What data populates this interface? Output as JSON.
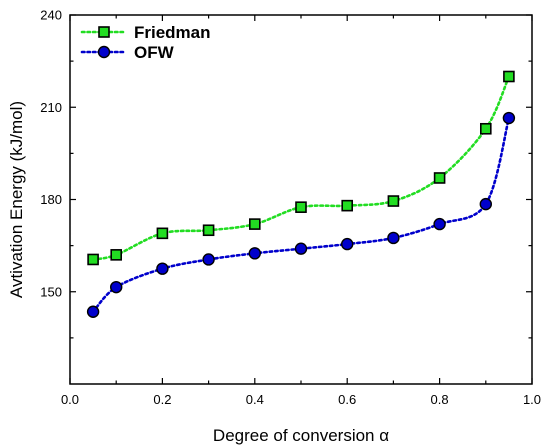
{
  "chart_data": {
    "type": "line",
    "title": "",
    "xlabel": "Degree of conversion α",
    "ylabel": "Avtivation Energy (kJ/mol)",
    "xlim": [
      0.0,
      1.0
    ],
    "ylim": [
      120,
      240
    ],
    "x_ticks": [
      0.0,
      0.2,
      0.4,
      0.6,
      0.8,
      1.0
    ],
    "x_tick_labels": [
      "0.0",
      "0.2",
      "0.4",
      "0.6",
      "0.8",
      "1.0"
    ],
    "y_ticks": [
      150,
      180,
      210,
      240
    ],
    "y_tick_labels": [
      "150",
      "180",
      "210",
      "240"
    ],
    "grid": false,
    "legend_position": "top-left",
    "series": [
      {
        "name": "Friedman",
        "color": "#22dd22",
        "marker": "square",
        "line_style": "dotted",
        "x": [
          0.05,
          0.1,
          0.2,
          0.3,
          0.4,
          0.5,
          0.6,
          0.7,
          0.8,
          0.9,
          0.95
        ],
        "values": [
          160.5,
          162,
          169,
          170,
          172,
          177.5,
          178,
          179.5,
          187,
          203,
          220
        ]
      },
      {
        "name": "OFW",
        "color": "#0000cc",
        "marker": "circle",
        "line_style": "dotted",
        "x": [
          0.05,
          0.1,
          0.2,
          0.3,
          0.4,
          0.5,
          0.6,
          0.7,
          0.8,
          0.9,
          0.95
        ],
        "values": [
          143.5,
          151.5,
          157.5,
          160.5,
          162.5,
          164,
          165.5,
          167.5,
          172,
          178.5,
          206.5
        ]
      }
    ]
  }
}
